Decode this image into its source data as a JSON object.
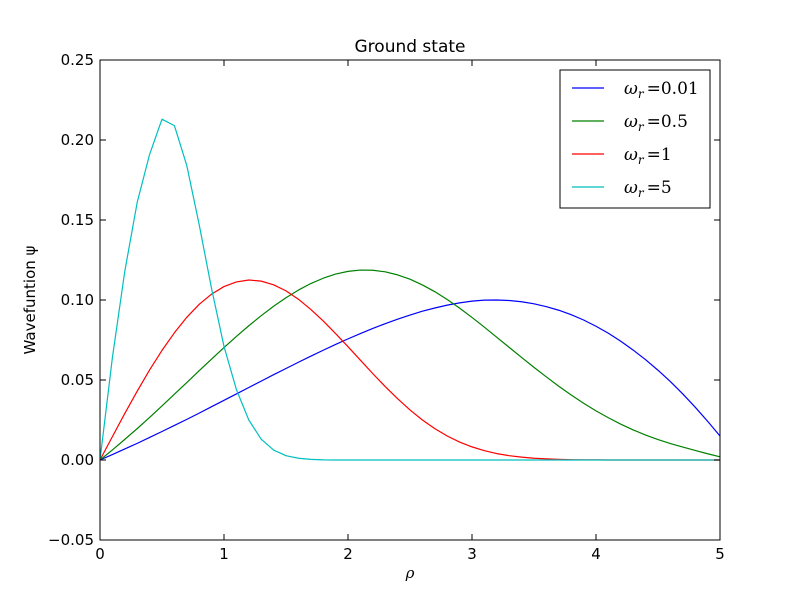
{
  "chart_data": {
    "type": "line",
    "title": "Ground state",
    "xlabel": "ρ",
    "ylabel": "Wavefuntion ψ",
    "xlim": [
      0,
      5
    ],
    "ylim": [
      -0.05,
      0.25
    ],
    "grid": false,
    "legend_position": "top-right",
    "x_ticks": [
      0,
      1,
      2,
      3,
      4,
      5
    ],
    "x_tick_labels": [
      "0",
      "1",
      "2",
      "3",
      "4",
      "5"
    ],
    "y_ticks": [
      -0.05,
      0.0,
      0.05,
      0.1,
      0.15,
      0.2,
      0.25
    ],
    "y_tick_labels": [
      "−0.05",
      "0.00",
      "0.05",
      "0.10",
      "0.15",
      "0.20",
      "0.25"
    ],
    "x": [
      0,
      0.1,
      0.2,
      0.3,
      0.4,
      0.5,
      0.6,
      0.7,
      0.8,
      0.9,
      1.0,
      1.1,
      1.2,
      1.3,
      1.4,
      1.5,
      1.6,
      1.7,
      1.8,
      1.9,
      2.0,
      2.1,
      2.2,
      2.3,
      2.4,
      2.5,
      2.6,
      2.7,
      2.8,
      2.9,
      3.0,
      3.1,
      3.2,
      3.3,
      3.4,
      3.5,
      3.6,
      3.7,
      3.8,
      3.9,
      4.0,
      4.1,
      4.2,
      4.3,
      4.4,
      4.5,
      4.6,
      4.7,
      4.8,
      4.9,
      5.0
    ],
    "series": [
      {
        "name": "ω_r = 0.01",
        "label_base": "ω",
        "label_sub": "r",
        "label_value": "=0.01",
        "color": "#0000ff",
        "values": [
          0.0,
          0.0034,
          0.0069,
          0.0104,
          0.0141,
          0.0178,
          0.0216,
          0.0254,
          0.0293,
          0.0333,
          0.0373,
          0.0413,
          0.0453,
          0.0493,
          0.0533,
          0.0572,
          0.0611,
          0.0649,
          0.0686,
          0.0722,
          0.0757,
          0.079,
          0.0822,
          0.0852,
          0.088,
          0.0906,
          0.093,
          0.095,
          0.0968,
          0.0982,
          0.0993,
          0.0999,
          0.1,
          0.0997,
          0.0989,
          0.0976,
          0.0958,
          0.0936,
          0.0908,
          0.0875,
          0.0836,
          0.0792,
          0.0742,
          0.0687,
          0.0627,
          0.0561,
          0.049,
          0.0413,
          0.033,
          0.0242,
          0.015
        ]
      },
      {
        "name": "ω_r = 0.5",
        "label_base": "ω",
        "label_sub": "r",
        "label_value": "=0.5",
        "color": "#008000",
        "values": [
          0.0,
          0.0063,
          0.0129,
          0.0196,
          0.0266,
          0.0338,
          0.0411,
          0.0484,
          0.0558,
          0.0631,
          0.0703,
          0.0772,
          0.0839,
          0.0902,
          0.0961,
          0.1014,
          0.1062,
          0.1103,
          0.1136,
          0.1162,
          0.1179,
          0.1187,
          0.1186,
          0.1176,
          0.1157,
          0.113,
          0.1094,
          0.1052,
          0.1003,
          0.0949,
          0.0891,
          0.083,
          0.0767,
          0.0704,
          0.0641,
          0.0579,
          0.0519,
          0.0461,
          0.0406,
          0.0355,
          0.0307,
          0.0264,
          0.0224,
          0.0188,
          0.0156,
          0.0128,
          0.0103,
          0.0081,
          0.006,
          0.0039,
          0.002
        ]
      },
      {
        "name": "ω_r = 1",
        "label_base": "ω",
        "label_sub": "r",
        "label_value": "=1",
        "color": "#ff0000",
        "values": [
          0.0,
          0.0146,
          0.0291,
          0.043,
          0.0563,
          0.0685,
          0.0795,
          0.0892,
          0.0973,
          0.1037,
          0.1084,
          0.1113,
          0.1125,
          0.1118,
          0.1095,
          0.1057,
          0.1005,
          0.0941,
          0.0869,
          0.079,
          0.0708,
          0.0624,
          0.054,
          0.0459,
          0.0383,
          0.0313,
          0.025,
          0.0196,
          0.015,
          0.0112,
          0.0082,
          0.0058,
          0.004,
          0.0027,
          0.0018,
          0.0011,
          0.0007,
          0.0004,
          0.0002,
          0.0001,
          0.0001,
          0.0,
          0.0,
          0.0,
          0.0,
          0.0,
          0.0,
          0.0,
          0.0,
          0.0,
          0.0
        ]
      },
      {
        "name": "ω_r = 5",
        "label_base": "ω",
        "label_sub": "r",
        "label_value": "=5",
        "color": "#00bfbf",
        "values": [
          0.0,
          0.064,
          0.118,
          0.161,
          0.191,
          0.213,
          0.209,
          0.184,
          0.147,
          0.107,
          0.071,
          0.044,
          0.025,
          0.013,
          0.0062,
          0.0027,
          0.0011,
          0.0004,
          0.0001,
          0.0,
          0.0,
          0.0,
          0.0,
          0.0,
          0.0,
          0.0,
          0.0,
          0.0,
          0.0,
          0.0,
          0.0,
          0.0,
          0.0,
          0.0,
          0.0,
          0.0,
          0.0,
          0.0,
          0.0,
          0.0,
          0.0,
          0.0,
          0.0,
          0.0,
          0.0,
          0.0,
          0.0,
          0.0,
          0.0,
          0.0,
          0.0
        ]
      }
    ]
  }
}
